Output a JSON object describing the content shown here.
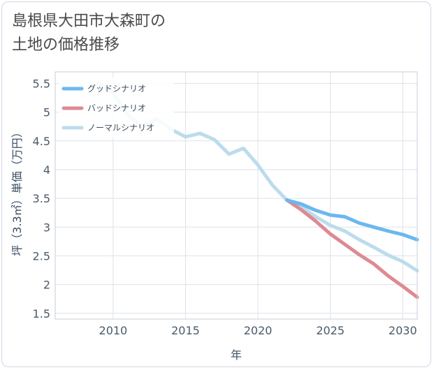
{
  "page": {
    "title": "島根県大田市大森町の\n土地の価格推移"
  },
  "chart_data": {
    "type": "line",
    "title": "島根県大田市大森町の土地の価格推移",
    "xlabel": "年",
    "ylabel": "坪（3.3㎡）単価（万円）",
    "xlim": [
      2006,
      2031
    ],
    "ylim": [
      1.4,
      5.7
    ],
    "xticks": [
      2010,
      2015,
      2020,
      2025,
      2030
    ],
    "xtick_labels": [
      "2010",
      "2015",
      "2020",
      "2025",
      "2030"
    ],
    "yticks": [
      1.5,
      2,
      2.5,
      3,
      3.5,
      4,
      4.5,
      5,
      5.5
    ],
    "ytick_labels": [
      "1.5",
      "2",
      "2.5",
      "3",
      "3.5",
      "4",
      "4.5",
      "5",
      "5.5"
    ],
    "grid": true,
    "legend_position": "top-left",
    "series": [
      {
        "name": "グッドシナリオ",
        "color": "#6bb8ee",
        "x": [
          2022,
          2023,
          2024,
          2025,
          2026,
          2027,
          2028,
          2029,
          2030,
          2031
        ],
        "y": [
          3.47,
          3.4,
          3.29,
          3.21,
          3.18,
          3.07,
          3.0,
          2.93,
          2.87,
          2.78
        ]
      },
      {
        "name": "バッドシナリオ",
        "color": "#de8a93",
        "x": [
          2022,
          2023,
          2024,
          2025,
          2026,
          2027,
          2028,
          2029,
          2030,
          2031
        ],
        "y": [
          3.47,
          3.3,
          3.1,
          2.88,
          2.7,
          2.52,
          2.36,
          2.15,
          1.97,
          1.78
        ]
      },
      {
        "name": "ノーマルシナリオ",
        "color": "#bcdcec",
        "x": [
          2009,
          2010,
          2011,
          2012,
          2013,
          2014,
          2015,
          2016,
          2017,
          2018,
          2019,
          2020,
          2021,
          2022,
          2023,
          2024,
          2025,
          2026,
          2027,
          2028,
          2029,
          2030,
          2031
        ],
        "y": [
          5.5,
          5.33,
          4.95,
          4.75,
          4.88,
          4.7,
          4.57,
          4.63,
          4.52,
          4.27,
          4.37,
          4.08,
          3.73,
          3.47,
          3.35,
          3.18,
          3.03,
          2.93,
          2.78,
          2.65,
          2.51,
          2.4,
          2.24
        ]
      }
    ]
  }
}
